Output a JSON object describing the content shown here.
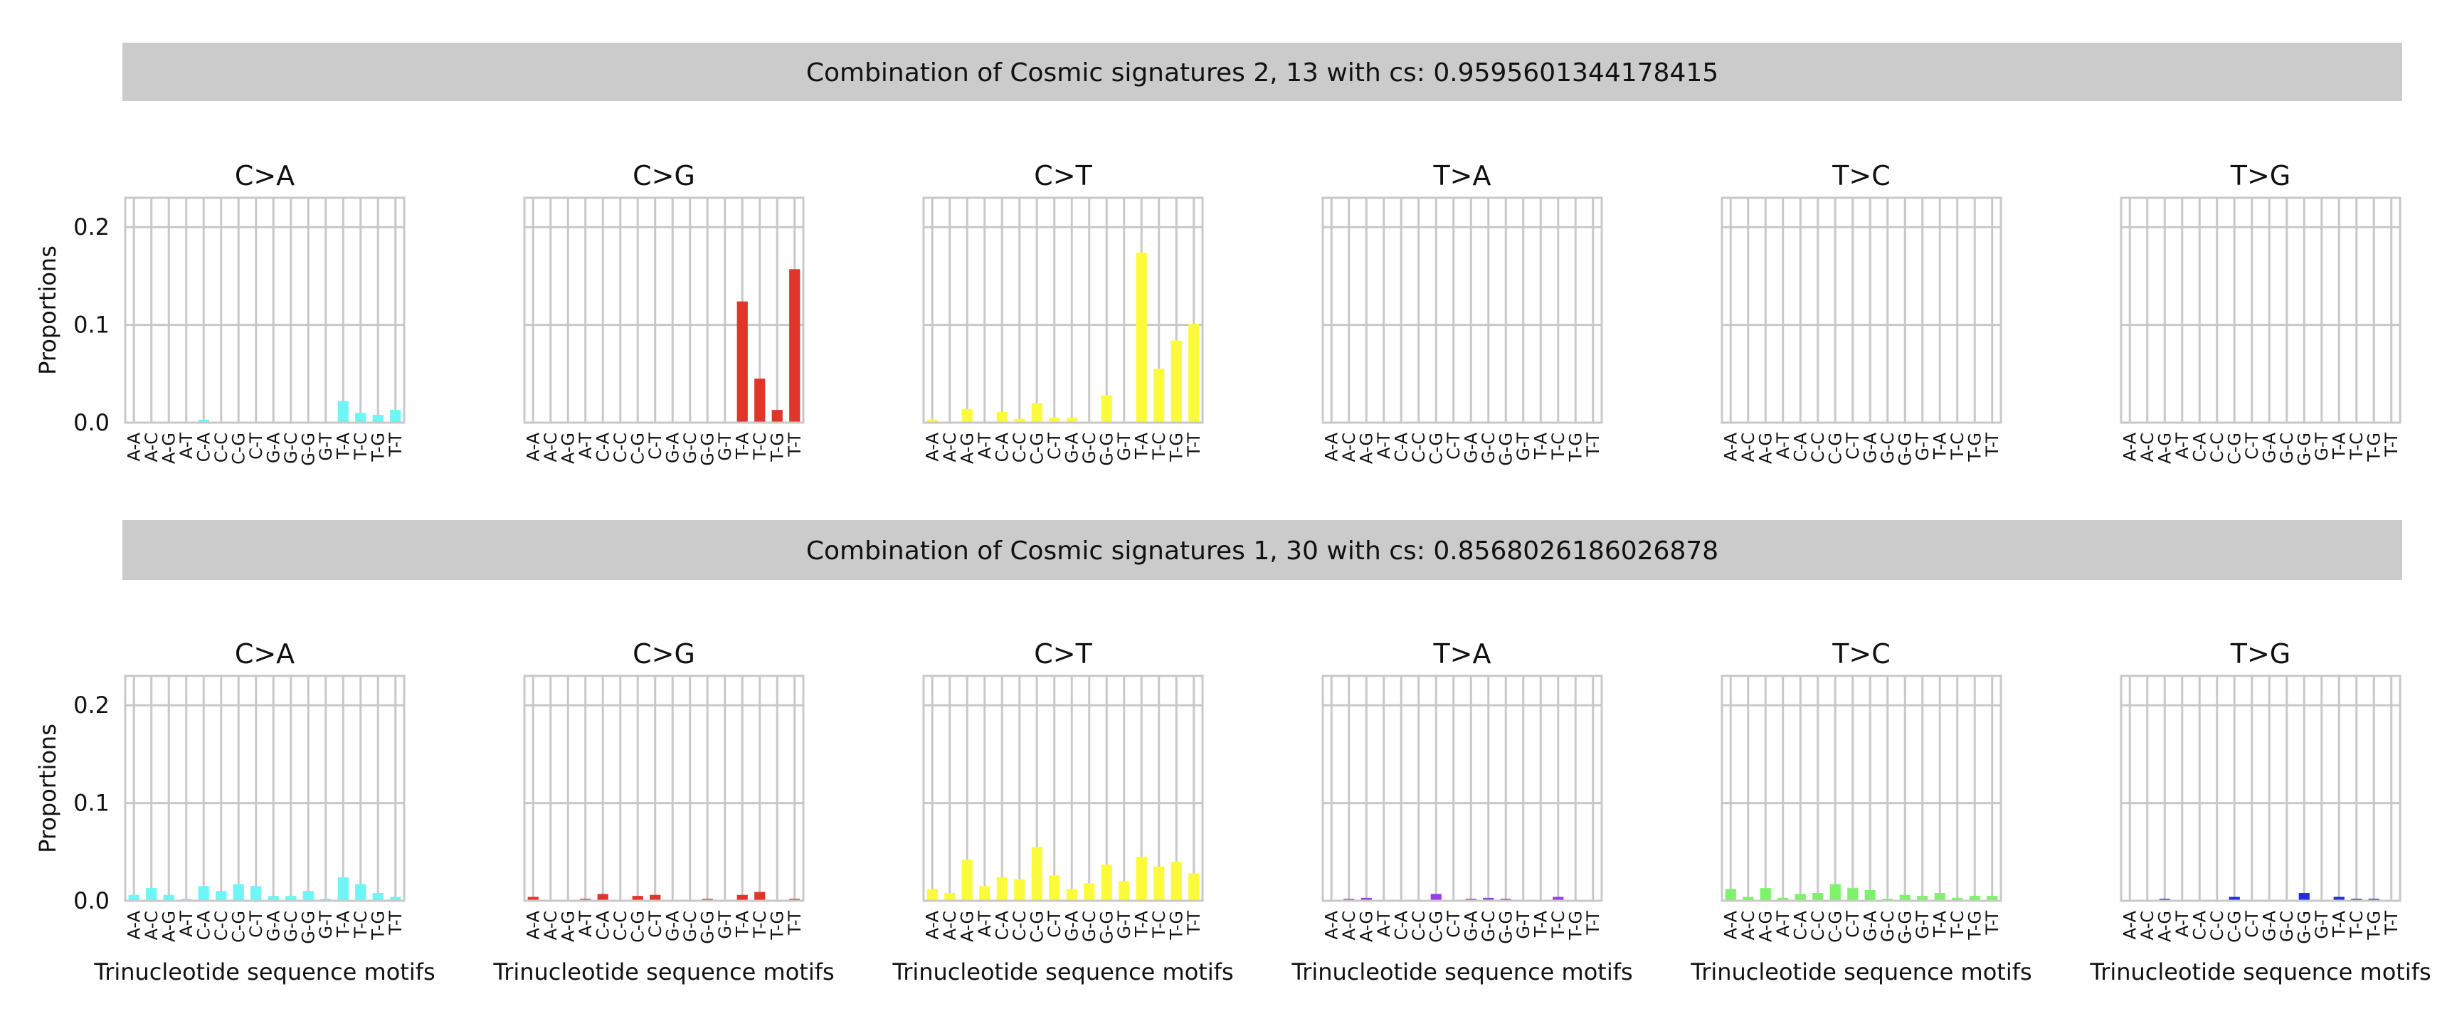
{
  "motif_labels": [
    "A-A",
    "A-C",
    "A-G",
    "A-T",
    "C-A",
    "C-C",
    "C-G",
    "C-T",
    "G-A",
    "G-C",
    "G-G",
    "G-T",
    "T-A",
    "T-C",
    "T-G",
    "T-T"
  ],
  "y_ticks": [
    "0.0",
    "0.1",
    "0.2"
  ],
  "colors": {
    "C>A": "#6ef5f5",
    "C>G": "#e0352a",
    "C>T": "#fbfb3c",
    "T>A": "#9a40e0",
    "T>C": "#7ef26a",
    "T>G": "#1f2ee0",
    "banner": "#cbcbcb",
    "grid": "#c8c8c8"
  },
  "chart_data": [
    {
      "type": "bar",
      "title": "Combination of Cosmic signatures 2, 13 with cs: 0.9595601344178415",
      "ylabel": "Proportions",
      "xlabel": "",
      "ylim": [
        0,
        0.23
      ],
      "grid": true,
      "categories": [
        "A-A",
        "A-C",
        "A-G",
        "A-T",
        "C-A",
        "C-C",
        "C-G",
        "C-T",
        "G-A",
        "G-C",
        "G-G",
        "G-T",
        "T-A",
        "T-C",
        "T-G",
        "T-T"
      ],
      "panels": [
        {
          "name": "C>A",
          "values": [
            0,
            0,
            0,
            0,
            0.003,
            0,
            0,
            0,
            0,
            0,
            0,
            0,
            0.022,
            0.01,
            0.008,
            0.013
          ]
        },
        {
          "name": "C>G",
          "values": [
            0,
            0,
            0,
            0,
            0,
            0,
            0,
            0,
            0,
            0,
            0,
            0,
            0.124,
            0.045,
            0.013,
            0.157
          ]
        },
        {
          "name": "C>T",
          "values": [
            0.003,
            0,
            0.014,
            0,
            0.011,
            0.004,
            0.02,
            0.005,
            0.005,
            0,
            0.028,
            0,
            0.174,
            0.055,
            0.084,
            0.101
          ]
        },
        {
          "name": "T>A",
          "values": [
            0,
            0,
            0,
            0,
            0,
            0,
            0,
            0,
            0,
            0,
            0,
            0,
            0,
            0,
            0,
            0
          ]
        },
        {
          "name": "T>C",
          "values": [
            0,
            0,
            0,
            0,
            0,
            0,
            0,
            0,
            0,
            0,
            0,
            0,
            0,
            0,
            0,
            0
          ]
        },
        {
          "name": "T>G",
          "values": [
            0,
            0,
            0,
            0,
            0,
            0,
            0,
            0,
            0,
            0,
            0,
            0,
            0,
            0,
            0,
            0
          ]
        }
      ]
    },
    {
      "type": "bar",
      "title": "Combination of Cosmic signatures 1, 30 with cs: 0.8568026186026878",
      "ylabel": "Proportions",
      "xlabel": "Trinucleotide sequence motifs",
      "ylim": [
        0,
        0.23
      ],
      "grid": true,
      "categories": [
        "A-A",
        "A-C",
        "A-G",
        "A-T",
        "C-A",
        "C-C",
        "C-G",
        "C-T",
        "G-A",
        "G-C",
        "G-G",
        "G-T",
        "T-A",
        "T-C",
        "T-G",
        "T-T"
      ],
      "panels": [
        {
          "name": "C>A",
          "values": [
            0.006,
            0.013,
            0.006,
            0.002,
            0.015,
            0.01,
            0.017,
            0.015,
            0.005,
            0.005,
            0.01,
            0.002,
            0.024,
            0.017,
            0.008,
            0.004
          ]
        },
        {
          "name": "C>G",
          "values": [
            0.004,
            0,
            0.001,
            0.002,
            0.007,
            0,
            0.005,
            0.006,
            0,
            0,
            0.002,
            0,
            0.006,
            0.009,
            0,
            0.002
          ]
        },
        {
          "name": "C>T",
          "values": [
            0.012,
            0.008,
            0.042,
            0.015,
            0.024,
            0.022,
            0.055,
            0.026,
            0.012,
            0.018,
            0.037,
            0.02,
            0.045,
            0.035,
            0.04,
            0.028
          ]
        },
        {
          "name": "T>A",
          "values": [
            0,
            0.002,
            0.003,
            0,
            0,
            0,
            0.007,
            0,
            0.002,
            0.003,
            0.002,
            0,
            0,
            0.004,
            0,
            0
          ]
        },
        {
          "name": "T>C",
          "values": [
            0.012,
            0.004,
            0.013,
            0.003,
            0.007,
            0.008,
            0.017,
            0.013,
            0.011,
            0.002,
            0.006,
            0.005,
            0.008,
            0.003,
            0.005,
            0.005
          ]
        },
        {
          "name": "T>G",
          "values": [
            0,
            0,
            0.002,
            0,
            0,
            0,
            0.004,
            0,
            0,
            0,
            0.008,
            0,
            0.004,
            0.002,
            0.002,
            0
          ]
        }
      ]
    }
  ]
}
